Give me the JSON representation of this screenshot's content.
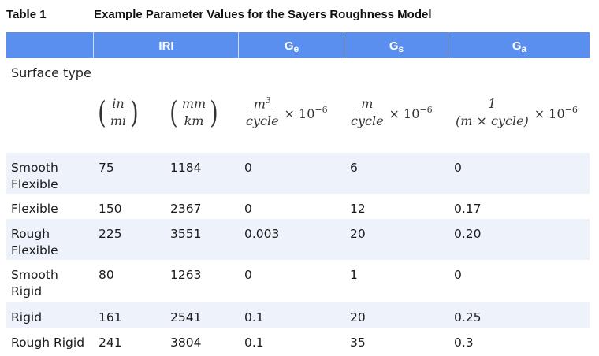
{
  "caption": {
    "label": "Table 1",
    "title": "Example Parameter Values for the Sayers Roughness Model"
  },
  "header": {
    "iri": "IRI",
    "ge": {
      "base": "G",
      "sub": "e"
    },
    "gs": {
      "base": "G",
      "sub": "s"
    },
    "ga": {
      "base": "G",
      "sub": "a"
    }
  },
  "surface_type_label": "Surface type",
  "units": {
    "iri_in": {
      "num": "in",
      "den": "mi"
    },
    "iri_mm": {
      "num": "mm",
      "den": "km"
    },
    "ge": {
      "num": "m",
      "num_sup": "3",
      "den": "cycle",
      "mult": "× 10",
      "exp": "−6"
    },
    "gs": {
      "num": "m",
      "den": "cycle",
      "mult": "× 10",
      "exp": "−6"
    },
    "ga": {
      "num": "1",
      "den": "(m × cycle)",
      "mult": "× 10",
      "exp": "−6"
    }
  },
  "rows": [
    {
      "type": "Smooth Flexible",
      "in_mi": "75",
      "mm_km": "1184",
      "ge": "0",
      "gs": "6",
      "ga": "0"
    },
    {
      "type": "Flexible",
      "in_mi": "150",
      "mm_km": "2367",
      "ge": "0",
      "gs": "12",
      "ga": "0.17"
    },
    {
      "type": "Rough Flexible",
      "in_mi": "225",
      "mm_km": "3551",
      "ge": "0.003",
      "gs": "20",
      "ga": "0.20"
    },
    {
      "type": "Smooth Rigid",
      "in_mi": "80",
      "mm_km": "1263",
      "ge": "0",
      "gs": "1",
      "ga": "0"
    },
    {
      "type": "Rigid",
      "in_mi": "161",
      "mm_km": "2541",
      "ge": "0.1",
      "gs": "20",
      "ga": "0.25"
    },
    {
      "type": "Rough Rigid",
      "in_mi": "241",
      "mm_km": "3804",
      "ge": "0.1",
      "gs": "35",
      "ga": "0.3"
    }
  ]
}
